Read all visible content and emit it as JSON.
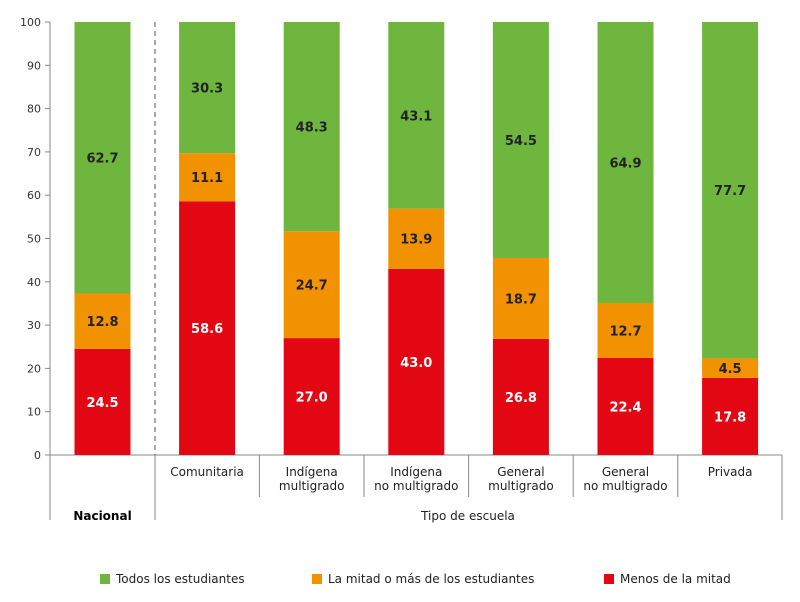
{
  "chart_data": {
    "type": "bar",
    "stacked": true,
    "categories": [
      "Nacional",
      "Comunitaria",
      "Indígena multigrado",
      "Indígena no multigrado",
      "General multigrado",
      "General no multigrado",
      "Privada"
    ],
    "category_lines": [
      [
        "Nacional"
      ],
      [
        "Comunitaria"
      ],
      [
        "Indígena",
        "multigrado"
      ],
      [
        "Indígena",
        "no multigrado"
      ],
      [
        "General",
        "multigrado"
      ],
      [
        "General",
        "no multigrado"
      ],
      [
        "Privada"
      ]
    ],
    "group_labels": {
      "national": "Nacional",
      "school_type": "Tipo de escuela"
    },
    "series": [
      {
        "name": "Menos de la mitad",
        "color": "#e30613",
        "values": [
          24.5,
          58.6,
          27.0,
          43.0,
          26.8,
          22.4,
          17.8
        ],
        "labels": [
          "24.5",
          "58.6",
          "27.0",
          "43.0",
          "26.8",
          "22.4",
          "17.8"
        ]
      },
      {
        "name": "La mitad o más de los estudiantes",
        "color": "#f39200",
        "values": [
          12.8,
          11.1,
          24.7,
          13.9,
          18.7,
          12.7,
          4.5
        ],
        "labels": [
          "12.8",
          "11.1",
          "24.7",
          "13.9",
          "18.7",
          "12.7",
          "4.5"
        ]
      },
      {
        "name": "Todos los estudiantes",
        "color": "#6fb63f",
        "values": [
          62.7,
          30.3,
          48.3,
          43.1,
          54.5,
          64.9,
          77.7
        ],
        "labels": [
          "62.7",
          "30.3",
          "48.3",
          "43.1",
          "54.5",
          "64.9",
          "77.7"
        ]
      }
    ],
    "legend_order": [
      2,
      1,
      0
    ],
    "legend_position": "bottom",
    "ylim": [
      0,
      100
    ],
    "yticks": [
      0,
      10,
      20,
      30,
      40,
      50,
      60,
      70,
      80,
      90,
      100
    ],
    "grid": false,
    "title": "",
    "xlabel": "",
    "ylabel": ""
  }
}
